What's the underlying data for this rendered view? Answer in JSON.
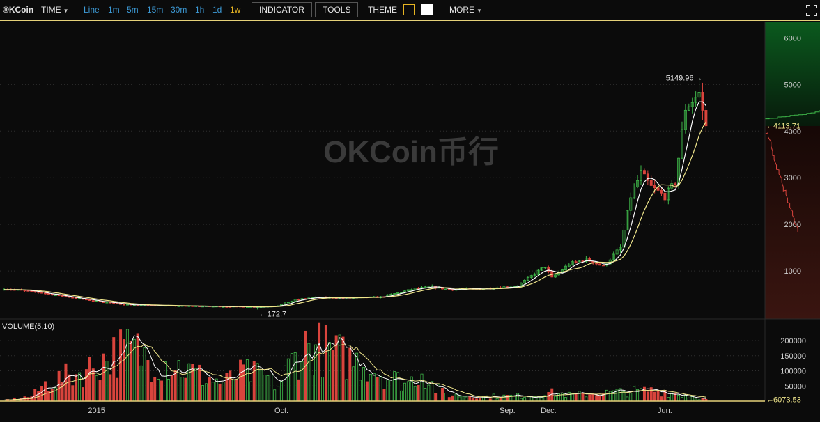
{
  "toolbar": {
    "logo": "®KCoin",
    "time_label": "TIME",
    "timeframes": [
      "Line",
      "1m",
      "5m",
      "15m",
      "30m",
      "1h",
      "1d",
      "1w"
    ],
    "active_timeframe": "1w",
    "indicator_label": "INDICATOR",
    "tools_label": "TOOLS",
    "theme_label": "THEME",
    "more_label": "MORE"
  },
  "watermark": "OKCoin币行",
  "colors": {
    "up": "#3fb84a",
    "down": "#d9443d",
    "ma_short": "#ffffff",
    "ma_long": "#f0e68c",
    "accent": "#e6b422",
    "timeframe_link": "#3d9ad6",
    "depth_bid_fill": "#0e4a1a",
    "depth_ask_fill": "#3a1510"
  },
  "chart_data": [
    {
      "type": "candlestick",
      "ylim": [
        0,
        6500
      ],
      "yticks": [
        1000,
        2000,
        3000,
        4000,
        5000,
        6000
      ],
      "x_labels": [
        {
          "label": "2015",
          "week": 27
        },
        {
          "label": "Oct.",
          "week": 81
        },
        {
          "label": "Sep.",
          "week": 147
        },
        {
          "label": "Dec.",
          "week": 159
        },
        {
          "label": "Jun.",
          "week": 193
        }
      ],
      "x_range": [
        0,
        221
      ],
      "max_annotation": {
        "label": "5149.96",
        "value": 5149.96
      },
      "min_annotation": {
        "label": "172.7",
        "value": 172.7
      },
      "last_price": {
        "label": "4113.71",
        "value": 4113.71
      },
      "anchors": [
        [
          0,
          620
        ],
        [
          10,
          540
        ],
        [
          25,
          370
        ],
        [
          35,
          280
        ],
        [
          50,
          250
        ],
        [
          60,
          240
        ],
        [
          75,
          230
        ],
        [
          80,
          260
        ],
        [
          85,
          380
        ],
        [
          90,
          430
        ],
        [
          100,
          420
        ],
        [
          110,
          440
        ],
        [
          120,
          620
        ],
        [
          125,
          660
        ],
        [
          130,
          600
        ],
        [
          140,
          620
        ],
        [
          150,
          680
        ],
        [
          158,
          1100
        ],
        [
          160,
          850
        ],
        [
          165,
          1150
        ],
        [
          170,
          1250
        ],
        [
          175,
          1100
        ],
        [
          180,
          1500
        ],
        [
          183,
          2600
        ],
        [
          186,
          3100
        ],
        [
          189,
          2800
        ],
        [
          193,
          2600
        ],
        [
          196,
          2900
        ],
        [
          199,
          4500
        ],
        [
          203,
          4800
        ],
        [
          205,
          4113.71
        ]
      ]
    },
    {
      "type": "bar",
      "title": "VOLUME(5,10)",
      "ylim": [
        0,
        230000
      ],
      "yticks": [
        50000,
        100000,
        150000,
        200000
      ],
      "last_volume": {
        "label": "6073.53",
        "value": 6073.53
      },
      "anchors": [
        [
          0,
          3000
        ],
        [
          8,
          15000
        ],
        [
          12,
          55000
        ],
        [
          18,
          80000
        ],
        [
          24,
          100000
        ],
        [
          28,
          130000
        ],
        [
          33,
          160000
        ],
        [
          38,
          170000
        ],
        [
          42,
          140000
        ],
        [
          50,
          120000
        ],
        [
          58,
          80000
        ],
        [
          64,
          60000
        ],
        [
          70,
          95000
        ],
        [
          76,
          80000
        ],
        [
          80,
          50000
        ],
        [
          84,
          130000
        ],
        [
          88,
          180000
        ],
        [
          92,
          175000
        ],
        [
          96,
          160000
        ],
        [
          100,
          140000
        ],
        [
          106,
          120000
        ],
        [
          112,
          80000
        ],
        [
          118,
          60000
        ],
        [
          122,
          100000
        ],
        [
          126,
          40000
        ],
        [
          130,
          20000
        ],
        [
          140,
          15000
        ],
        [
          155,
          18000
        ],
        [
          158,
          30000
        ],
        [
          165,
          20000
        ],
        [
          180,
          30000
        ],
        [
          190,
          35000
        ],
        [
          196,
          25000
        ],
        [
          205,
          6073.53
        ]
      ]
    }
  ]
}
